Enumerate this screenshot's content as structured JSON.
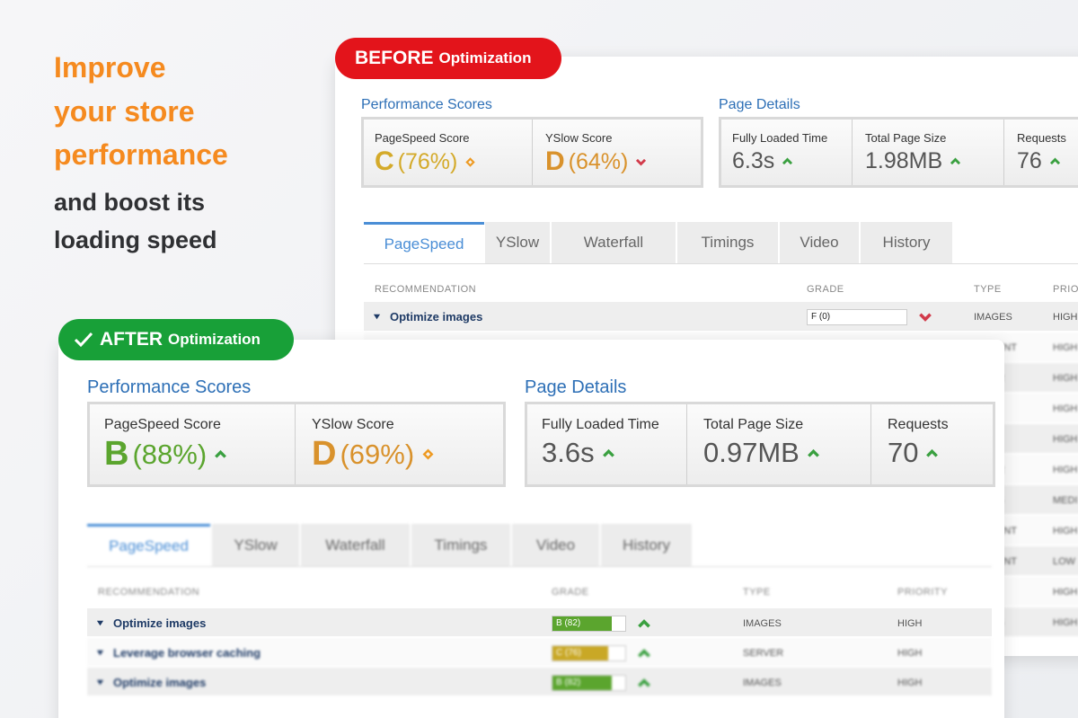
{
  "headline": {
    "highlight": [
      "Improve",
      "your store",
      "performance"
    ],
    "rest": [
      "and boost its",
      "loading speed"
    ]
  },
  "before": {
    "badge": {
      "label": "BEFORE",
      "suffix": "Optimization"
    },
    "performance": {
      "title": "Performance Scores",
      "scores": [
        {
          "label": "PageSpeed Score",
          "grade": "C",
          "percent": "(76%)",
          "trend": "neutral",
          "color": "#d4aa2a"
        },
        {
          "label": "YSlow Score",
          "grade": "D",
          "percent": "(64%)",
          "trend": "down",
          "color": "#d9922c"
        }
      ]
    },
    "details": {
      "title": "Page Details",
      "items": [
        {
          "label": "Fully Loaded Time",
          "value": "6.3s",
          "trend": "up"
        },
        {
          "label": "Total Page Size",
          "value": "1.98MB",
          "trend": "up"
        },
        {
          "label": "Requests",
          "value": "76",
          "trend": "up"
        }
      ]
    },
    "tabs": [
      "PageSpeed",
      "YSlow",
      "Waterfall",
      "Timings",
      "Video",
      "History"
    ],
    "table": {
      "columns": [
        "RECOMMENDATION",
        "GRADE",
        "TYPE",
        "PRIO"
      ],
      "rows": [
        {
          "name": "Optimize images",
          "grade": "F (0)",
          "score": 0,
          "trend": "down",
          "type": "IMAGES",
          "priority": "HIGH"
        },
        {
          "type": "ENT",
          "priority": "HIGH"
        },
        {
          "type": "R",
          "priority": "HIGH"
        },
        {
          "priority": "HIGH"
        },
        {
          "priority": "HIGH"
        },
        {
          "type": "R",
          "priority": "HIGH"
        },
        {
          "type": "S",
          "priority": "MEDI"
        },
        {
          "type": "ENT",
          "priority": "HIGH"
        },
        {
          "type": "ENT",
          "priority": "LOW"
        },
        {
          "priority": "HIGH"
        },
        {
          "type": "S",
          "priority": "HIGH"
        }
      ]
    }
  },
  "after": {
    "badge": {
      "label": "AFTER",
      "suffix": "Optimization"
    },
    "performance": {
      "title": "Performance Scores",
      "scores": [
        {
          "label": "PageSpeed Score",
          "grade": "B",
          "percent": "(88%)",
          "trend": "up",
          "color": "#5ba52e"
        },
        {
          "label": "YSlow Score",
          "grade": "D",
          "percent": "(69%)",
          "trend": "neutral",
          "color": "#d9922c"
        }
      ]
    },
    "details": {
      "title": "Page Details",
      "items": [
        {
          "label": "Fully Loaded Time",
          "value": "3.6s",
          "trend": "up"
        },
        {
          "label": "Total Page Size",
          "value": "0.97MB",
          "trend": "up"
        },
        {
          "label": "Requests",
          "value": "70",
          "trend": "up"
        }
      ]
    },
    "tabs": [
      "PageSpeed",
      "YSlow",
      "Waterfall",
      "Timings",
      "Video",
      "History"
    ],
    "table": {
      "columns": [
        "RECOMMENDATION",
        "GRADE",
        "TYPE",
        "PRIORITY"
      ],
      "rows": [
        {
          "name": "Optimize images",
          "grade": "B (82)",
          "score": 82,
          "trend": "up",
          "type": "IMAGES",
          "priority": "HIGH"
        },
        {
          "name": "Leverage browser caching",
          "grade": "C (76)",
          "score": 76,
          "trend": "up",
          "type": "SERVER",
          "priority": "HIGH"
        },
        {
          "name": "Optimize images",
          "grade": "B (82)",
          "score": 82,
          "trend": "up",
          "type": "IMAGES",
          "priority": "HIGH"
        }
      ]
    }
  }
}
